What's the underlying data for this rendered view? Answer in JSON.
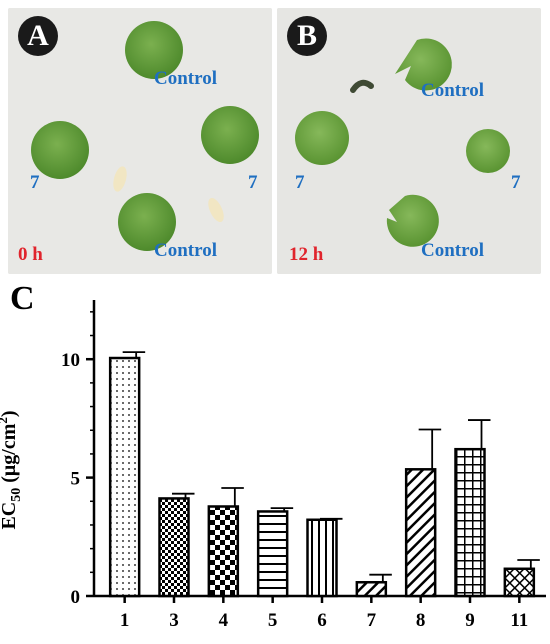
{
  "panels": {
    "a": {
      "badge": "A",
      "time": "0 h",
      "control_top": "Control",
      "control_bottom": "Control",
      "compound_left": "7",
      "compound_right": "7"
    },
    "b": {
      "badge": "B",
      "time": "12 h",
      "control_top": "Control",
      "control_bottom": "Control",
      "compound_left": "7",
      "compound_right": "7"
    },
    "c": {
      "badge": "C"
    }
  },
  "colors": {
    "label_blue": "#1f6fc1",
    "label_red": "#e0242c",
    "leaf_green": "#5f9a3a",
    "bar_stroke": "#000000"
  },
  "chart_data": {
    "type": "bar",
    "categories": [
      "1",
      "3",
      "4",
      "5",
      "6",
      "7",
      "8",
      "9",
      "11"
    ],
    "values": [
      10.05,
      4.12,
      3.78,
      3.57,
      3.22,
      0.58,
      5.35,
      6.2,
      1.15
    ],
    "errors": [
      0.25,
      0.2,
      0.78,
      0.14,
      0.04,
      0.32,
      1.68,
      1.23,
      0.37
    ],
    "patterns": [
      "dots",
      "checker-small",
      "checker-large",
      "horizontal-lines",
      "vertical-lines",
      "diagonal",
      "diagonal",
      "grid",
      "crosshatch"
    ],
    "ylabel": "EC50 (μg/cm2)",
    "ylabel_parts": {
      "main": "EC",
      "sub": "50",
      "unit_start": " (μg/cm",
      "sup": "2",
      "unit_end": ")"
    },
    "yticks": [
      "0",
      "5",
      "10"
    ],
    "ylim": [
      0,
      12.5
    ],
    "grid": false,
    "legend": false
  }
}
